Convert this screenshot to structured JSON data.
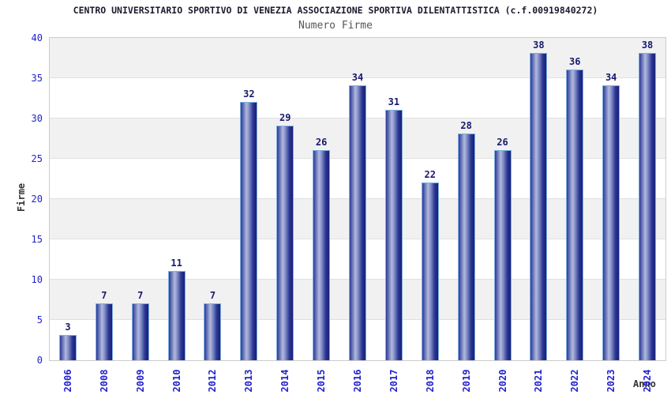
{
  "colors": {
    "title-color": "#1b1b30",
    "subtitle-color": "#555555",
    "tick-blue": "#2222cc",
    "value-color": "#191970",
    "axis-label-color": "#333333",
    "plot-border": "#cccccc",
    "band-gray": "#f1f1f1",
    "grid-color": "#e0e0e0",
    "bar-outline": "#7fb0e0",
    "bar-dark": "#2c3a99",
    "bar-light": "#b2b9de"
  },
  "chart_data": {
    "type": "bar",
    "title": "CENTRO UNIVERSITARIO SPORTIVO DI VENEZIA ASSOCIAZIONE SPORTIVA DILENTATTISTICA (c.f.00919840272)",
    "subtitle": "Numero Firme",
    "xlabel": "Anno",
    "ylabel": "Firme",
    "categories": [
      "2006",
      "2008",
      "2009",
      "2010",
      "2012",
      "2013",
      "2014",
      "2015",
      "2016",
      "2017",
      "2018",
      "2019",
      "2020",
      "2021",
      "2022",
      "2023",
      "2024"
    ],
    "values": [
      3,
      7,
      7,
      11,
      7,
      32,
      29,
      26,
      34,
      31,
      22,
      28,
      26,
      38,
      36,
      34,
      38
    ],
    "ylim": [
      0,
      40
    ],
    "ytick_step": 5,
    "grid": "horizontal-bands-alternating-gray-white",
    "legend": "none",
    "bar_style": "vertical-cylinder-gradient-blue"
  }
}
